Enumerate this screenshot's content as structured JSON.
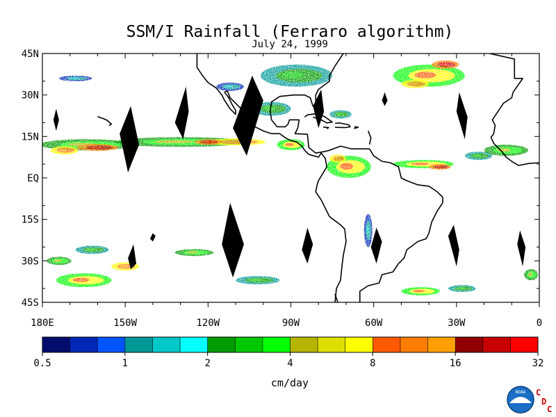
{
  "title": "SSM/I Rainfall (Ferraro algorithm)",
  "date": "July 24, 1999",
  "map": {
    "lon_range": [
      -180,
      0
    ],
    "lat_range": [
      -45,
      45
    ],
    "lat_labels": [
      {
        "lat": 45,
        "label": "45N"
      },
      {
        "lat": 30,
        "label": "30N"
      },
      {
        "lat": 15,
        "label": "15N"
      },
      {
        "lat": 0,
        "label": "EQ"
      },
      {
        "lat": -15,
        "label": "15S"
      },
      {
        "lat": -30,
        "label": "30S"
      },
      {
        "lat": -45,
        "label": "45S"
      }
    ],
    "lon_labels": [
      {
        "lon": -180,
        "label": "180E"
      },
      {
        "lon": -150,
        "label": "150W"
      },
      {
        "lon": -120,
        "label": "120W"
      },
      {
        "lon": -90,
        "label": "90W"
      },
      {
        "lon": -60,
        "label": "60W"
      },
      {
        "lon": -30,
        "label": "30W"
      },
      {
        "lon": 0,
        "label": "0"
      }
    ],
    "missing_swaths": [
      [
        [
          -175,
          25
        ],
        [
          -174,
          21
        ],
        [
          -175,
          17
        ],
        [
          -176,
          21
        ]
      ],
      [
        [
          -148,
          26
        ],
        [
          -145,
          12
        ],
        [
          -149,
          2
        ],
        [
          -152,
          16
        ]
      ],
      [
        [
          -128,
          33
        ],
        [
          -127,
          24
        ],
        [
          -129,
          14
        ],
        [
          -132,
          20
        ]
      ],
      [
        [
          -104,
          37
        ],
        [
          -100,
          28
        ],
        [
          -106,
          8
        ],
        [
          -111,
          18
        ]
      ],
      [
        [
          -79,
          32
        ],
        [
          -78,
          24
        ],
        [
          -80,
          18
        ],
        [
          -82,
          26
        ]
      ],
      [
        [
          -56,
          31
        ],
        [
          -55,
          28
        ],
        [
          -56,
          26
        ],
        [
          -57,
          28
        ]
      ],
      [
        [
          -29,
          31
        ],
        [
          -26,
          22
        ],
        [
          -27,
          14
        ],
        [
          -30,
          24
        ]
      ],
      [
        [
          -112,
          -9
        ],
        [
          -107,
          -24
        ],
        [
          -111,
          -36
        ],
        [
          -115,
          -24
        ]
      ],
      [
        [
          -147,
          -24
        ],
        [
          -146,
          -31
        ],
        [
          -148,
          -33
        ],
        [
          -149,
          -29
        ]
      ],
      [
        [
          -84,
          -18
        ],
        [
          -82,
          -24
        ],
        [
          -84,
          -31
        ],
        [
          -86,
          -26
        ]
      ],
      [
        [
          -59,
          -18
        ],
        [
          -57,
          -23
        ],
        [
          -59,
          -31
        ],
        [
          -61,
          -25
        ]
      ],
      [
        [
          -31,
          -17
        ],
        [
          -29,
          -26
        ],
        [
          -30,
          -32
        ],
        [
          -33,
          -21
        ]
      ],
      [
        [
          -7,
          -19
        ],
        [
          -5,
          -25
        ],
        [
          -6,
          -32
        ],
        [
          -8,
          -24
        ]
      ],
      [
        [
          -140,
          -20
        ],
        [
          -139,
          -21
        ],
        [
          -140,
          -23
        ],
        [
          -141,
          -22
        ]
      ]
    ],
    "coastlines": [
      [
        [
          -71,
          45
        ],
        [
          -74,
          40.5
        ],
        [
          -76,
          37
        ],
        [
          -76,
          35
        ],
        [
          -80,
          32
        ],
        [
          -81,
          30
        ],
        [
          -81,
          27
        ],
        [
          -80,
          25
        ],
        [
          -82,
          26
        ],
        [
          -83,
          29
        ],
        [
          -85,
          30
        ],
        [
          -89,
          30
        ],
        [
          -94,
          29.5
        ],
        [
          -97,
          27.5
        ],
        [
          -97.5,
          24
        ],
        [
          -97,
          21
        ],
        [
          -95,
          18.5
        ],
        [
          -92,
          18.5
        ],
        [
          -91,
          19.5
        ],
        [
          -90.5,
          21
        ],
        [
          -87,
          21
        ],
        [
          -87.5,
          18
        ],
        [
          -88.5,
          16
        ],
        [
          -84,
          15.8
        ],
        [
          -83.5,
          11
        ],
        [
          -81,
          9
        ],
        [
          -78,
          9.5
        ],
        [
          -76,
          10
        ],
        [
          -72,
          11.5
        ],
        [
          -68,
          10.5
        ],
        [
          -64,
          10.5
        ],
        [
          -61.5,
          10.5
        ],
        [
          -60,
          8
        ],
        [
          -57,
          6
        ],
        [
          -54,
          5.5
        ],
        [
          -51,
          4
        ],
        [
          -50,
          0
        ],
        [
          -48,
          -1
        ],
        [
          -44,
          -2.5
        ],
        [
          -40,
          -3
        ],
        [
          -37,
          -5
        ],
        [
          -35,
          -7
        ],
        [
          -35,
          -9
        ],
        [
          -37,
          -12
        ],
        [
          -39,
          -16
        ],
        [
          -40,
          -20
        ],
        [
          -41,
          -22
        ],
        [
          -44,
          -23
        ],
        [
          -48,
          -26
        ],
        [
          -49,
          -29
        ],
        [
          -51,
          -31
        ],
        [
          -53,
          -34
        ],
        [
          -57,
          -35
        ],
        [
          -58,
          -38
        ],
        [
          -62,
          -39
        ],
        [
          -65,
          -41
        ],
        [
          -65,
          -45
        ]
      ],
      [
        [
          -124,
          45
        ],
        [
          -124,
          40
        ],
        [
          -122,
          37
        ],
        [
          -120,
          34.5
        ],
        [
          -117,
          32.5
        ],
        [
          -115,
          30
        ],
        [
          -114,
          28
        ],
        [
          -112,
          25
        ],
        [
          -110,
          23
        ],
        [
          -110,
          24.5
        ],
        [
          -111,
          26
        ],
        [
          -112.5,
          29
        ],
        [
          -114,
          31
        ],
        [
          -113,
          31.5
        ],
        [
          -112,
          29
        ],
        [
          -110,
          27
        ],
        [
          -108,
          25
        ],
        [
          -106,
          23
        ],
        [
          -105,
          20
        ],
        [
          -103,
          18.5
        ],
        [
          -100,
          17
        ],
        [
          -97,
          16
        ],
        [
          -94,
          16
        ],
        [
          -92,
          14.5
        ],
        [
          -90,
          13.5
        ],
        [
          -88,
          13
        ],
        [
          -86,
          11.5
        ],
        [
          -85,
          10
        ],
        [
          -83.5,
          8.5
        ],
        [
          -80,
          7.5
        ],
        [
          -79,
          9
        ],
        [
          -77.5,
          7
        ],
        [
          -77,
          4
        ],
        [
          -78.5,
          1.5
        ],
        [
          -80,
          -1
        ],
        [
          -80.5,
          -2.5
        ],
        [
          -81,
          -5
        ],
        [
          -79,
          -8
        ],
        [
          -77,
          -12
        ],
        [
          -76,
          -14
        ],
        [
          -72,
          -17
        ],
        [
          -70.5,
          -18.5
        ],
        [
          -70,
          -23
        ],
        [
          -71,
          -28
        ],
        [
          -71.5,
          -32
        ],
        [
          -72,
          -37
        ],
        [
          -73.5,
          -40
        ],
        [
          -74,
          -45
        ]
      ],
      [
        [
          -85,
          22
        ],
        [
          -84,
          22.8
        ],
        [
          -81,
          23.2
        ],
        [
          -78,
          22.3
        ],
        [
          -75,
          20.2
        ],
        [
          -77,
          19.9
        ],
        [
          -79,
          21
        ],
        [
          -82,
          22
        ]
      ],
      [
        [
          -74,
          19.7
        ],
        [
          -72.5,
          19.9
        ],
        [
          -69,
          19.2
        ],
        [
          -68.5,
          18.5
        ],
        [
          -70.5,
          18.2
        ],
        [
          -74,
          18.3
        ]
      ],
      [
        [
          -78.3,
          18.4
        ],
        [
          -76.3,
          18.2
        ],
        [
          -77,
          17.8
        ]
      ],
      [
        [
          -67,
          18.5
        ],
        [
          -65.6,
          18.3
        ],
        [
          -67.1,
          17.9
        ]
      ],
      [
        [
          -62,
          17
        ],
        [
          -61,
          14.5
        ],
        [
          -61.5,
          12.1
        ]
      ],
      [
        [
          -18,
          45
        ],
        [
          -9,
          43
        ],
        [
          -9,
          39
        ],
        [
          -9,
          36
        ],
        [
          -6,
          36
        ],
        [
          -9.5,
          31
        ],
        [
          -10,
          29
        ],
        [
          -13,
          27
        ],
        [
          -15,
          24
        ],
        [
          -17,
          21
        ],
        [
          -16,
          19
        ],
        [
          -16.5,
          16
        ],
        [
          -17.5,
          14.7
        ],
        [
          -16.5,
          12.5
        ],
        [
          -15,
          11
        ],
        [
          -13.5,
          9.5
        ],
        [
          -12,
          7.5
        ],
        [
          -10,
          6
        ],
        [
          -7.5,
          4.5
        ],
        [
          -4,
          5.2
        ],
        [
          0,
          5.5
        ]
      ],
      [
        [
          -160,
          22.2
        ],
        [
          -159.3,
          21.9
        ],
        [
          -158,
          21.5
        ],
        [
          -156.5,
          20.8
        ],
        [
          -155,
          19.5
        ],
        [
          -155.8,
          18.9
        ]
      ],
      [
        [
          -73,
          -45
        ],
        [
          -74,
          -42
        ]
      ]
    ]
  },
  "rain_areas": [
    {
      "lon": -164,
      "lat": 12,
      "w": 34,
      "h": 4,
      "lvl": 2
    },
    {
      "lon": -160,
      "lat": 11,
      "w": 15,
      "h": 2.5,
      "lvl": 5
    },
    {
      "lon": -172,
      "lat": 10,
      "w": 10,
      "h": 3,
      "lvl": 4
    },
    {
      "lon": -130,
      "lat": 13,
      "w": 48,
      "h": 3.5,
      "lvl": 2
    },
    {
      "lon": -110,
      "lat": 13,
      "w": 22,
      "h": 2.5,
      "lvl": 4
    },
    {
      "lon": -120,
      "lat": 13,
      "w": 10,
      "h": 2,
      "lvl": 5
    },
    {
      "lon": -90,
      "lat": 12,
      "w": 10,
      "h": 4,
      "lvl": 3
    },
    {
      "lon": -97,
      "lat": 25,
      "w": 14,
      "h": 5,
      "lvl": 1
    },
    {
      "lon": -88,
      "lat": 37,
      "w": 26,
      "h": 8,
      "lvl": 1
    },
    {
      "lon": -72,
      "lat": 23,
      "w": 8,
      "h": 3,
      "lvl": 1
    },
    {
      "lon": -40,
      "lat": 37,
      "w": 26,
      "h": 8,
      "lvl": 3
    },
    {
      "lon": -34,
      "lat": 41,
      "w": 10,
      "h": 3,
      "lvl": 5
    },
    {
      "lon": -45,
      "lat": 34,
      "w": 10,
      "h": 3,
      "lvl": 4
    },
    {
      "lon": -69,
      "lat": 4,
      "w": 16,
      "h": 8,
      "lvl": 3
    },
    {
      "lon": -73,
      "lat": 7,
      "w": 6,
      "h": 3,
      "lvl": 4
    },
    {
      "lon": -42,
      "lat": 5,
      "w": 22,
      "h": 3,
      "lvl": 3
    },
    {
      "lon": -36,
      "lat": 4,
      "w": 8,
      "h": 2,
      "lvl": 5
    },
    {
      "lon": -12,
      "lat": 10,
      "w": 16,
      "h": 4,
      "lvl": 2
    },
    {
      "lon": -22,
      "lat": 8,
      "w": 10,
      "h": 3,
      "lvl": 1
    },
    {
      "lon": -165,
      "lat": -37,
      "w": 20,
      "h": 5,
      "lvl": 3
    },
    {
      "lon": -150,
      "lat": -32,
      "w": 10,
      "h": 3,
      "lvl": 4
    },
    {
      "lon": -174,
      "lat": -30,
      "w": 9,
      "h": 3,
      "lvl": 2
    },
    {
      "lon": -162,
      "lat": -26,
      "w": 12,
      "h": 3,
      "lvl": 1
    },
    {
      "lon": -125,
      "lat": -27,
      "w": 14,
      "h": 2.5,
      "lvl": 2
    },
    {
      "lon": -102,
      "lat": -37,
      "w": 16,
      "h": 3,
      "lvl": 1
    },
    {
      "lon": -43,
      "lat": -41,
      "w": 14,
      "h": 3,
      "lvl": 3
    },
    {
      "lon": -3,
      "lat": -35,
      "w": 5,
      "h": 4,
      "lvl": 2
    },
    {
      "lon": -28,
      "lat": -40,
      "w": 10,
      "h": 2.5,
      "lvl": 1
    },
    {
      "lon": -62,
      "lat": -19,
      "w": 3,
      "h": 12,
      "lvl": 0
    },
    {
      "lon": -112,
      "lat": 33,
      "w": 10,
      "h": 3,
      "lvl": 0
    },
    {
      "lon": -168,
      "lat": 36,
      "w": 12,
      "h": 2,
      "lvl": 0
    }
  ],
  "color_scale": {
    "colors": [
      "#000d6d",
      "#0028b7",
      "#0055ff",
      "#009896",
      "#00c7c8",
      "#00ffff",
      "#009b00",
      "#00c800",
      "#00ff00",
      "#b5b500",
      "#dedf00",
      "#ffff00",
      "#ff5a00",
      "#ff7d00",
      "#ffa000",
      "#900000",
      "#c80000",
      "#ff0000"
    ],
    "tick_labels": [
      "0.5",
      "1",
      "2",
      "4",
      "8",
      "16",
      "32"
    ],
    "units": "cm/day"
  },
  "logo": {
    "badge_text": "NOAA",
    "letters": [
      "C",
      "D",
      "C"
    ]
  }
}
